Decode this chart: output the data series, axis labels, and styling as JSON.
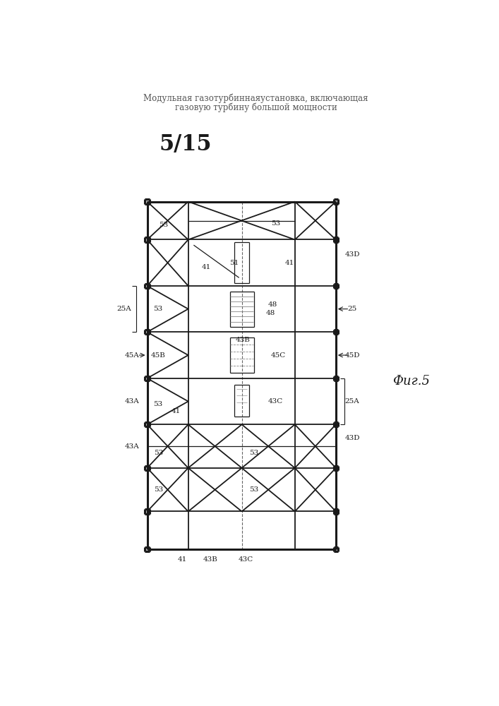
{
  "title_line1": "Модульная газотурбиннаяустановка, включающая",
  "title_line2": "газовую турбину большой мощности",
  "page_label": "5/15",
  "fig_label": "Фиг.5",
  "bg_color": "#ffffff",
  "line_color": "#1a1a1a",
  "lw_thick": 2.2,
  "lw_med": 1.3,
  "lw_thin": 0.9,
  "struct": {
    "xl": 155,
    "xr": 500,
    "xcL": 230,
    "xcC": 328,
    "xcR": 425,
    "ytop": 215,
    "ybot": 870,
    "ylevels": [
      215,
      285,
      370,
      455,
      540,
      625,
      705,
      785,
      855
    ]
  }
}
